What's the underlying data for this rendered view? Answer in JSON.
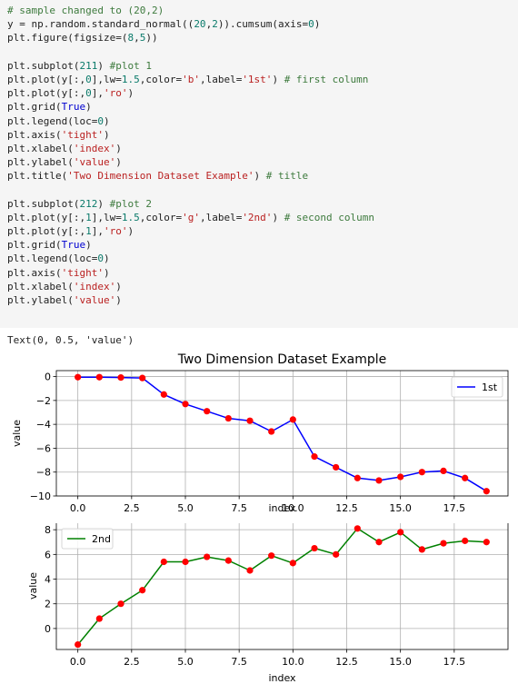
{
  "code_lines": [
    [
      {
        "t": "# sample changed to (20,2)",
        "c": "com"
      }
    ],
    [
      {
        "t": "y = np.random.standard_normal(("
      },
      {
        "t": "20",
        "c": "num"
      },
      {
        "t": ","
      },
      {
        "t": "2",
        "c": "num"
      },
      {
        "t": ")).cumsum(axis="
      },
      {
        "t": "0",
        "c": "num"
      },
      {
        "t": ")"
      }
    ],
    [
      {
        "t": "plt.figure(figsize=("
      },
      {
        "t": "8",
        "c": "num"
      },
      {
        "t": ","
      },
      {
        "t": "5",
        "c": "num"
      },
      {
        "t": "))"
      }
    ],
    [
      {
        "t": ""
      }
    ],
    [
      {
        "t": "plt.subplot("
      },
      {
        "t": "211",
        "c": "num"
      },
      {
        "t": ") "
      },
      {
        "t": "#plot 1",
        "c": "com"
      }
    ],
    [
      {
        "t": "plt.plot(y[:,"
      },
      {
        "t": "0",
        "c": "num"
      },
      {
        "t": "],lw="
      },
      {
        "t": "1.5",
        "c": "num"
      },
      {
        "t": ",color="
      },
      {
        "t": "'b'",
        "c": "str"
      },
      {
        "t": ",label="
      },
      {
        "t": "'1st'",
        "c": "str"
      },
      {
        "t": ") "
      },
      {
        "t": "# first column",
        "c": "com"
      }
    ],
    [
      {
        "t": "plt.plot(y[:,"
      },
      {
        "t": "0",
        "c": "num"
      },
      {
        "t": "],"
      },
      {
        "t": "'ro'",
        "c": "str"
      },
      {
        "t": ")"
      }
    ],
    [
      {
        "t": "plt.grid("
      },
      {
        "t": "True",
        "c": "kw"
      },
      {
        "t": ")"
      }
    ],
    [
      {
        "t": "plt.legend(loc="
      },
      {
        "t": "0",
        "c": "num"
      },
      {
        "t": ")"
      }
    ],
    [
      {
        "t": "plt.axis("
      },
      {
        "t": "'tight'",
        "c": "str"
      },
      {
        "t": ")"
      }
    ],
    [
      {
        "t": "plt.xlabel("
      },
      {
        "t": "'index'",
        "c": "str"
      },
      {
        "t": ")"
      }
    ],
    [
      {
        "t": "plt.ylabel("
      },
      {
        "t": "'value'",
        "c": "str"
      },
      {
        "t": ")"
      }
    ],
    [
      {
        "t": "plt.title("
      },
      {
        "t": "'Two Dimension Dataset Example'",
        "c": "str"
      },
      {
        "t": ") "
      },
      {
        "t": "# title",
        "c": "com"
      }
    ],
    [
      {
        "t": ""
      }
    ],
    [
      {
        "t": "plt.subplot("
      },
      {
        "t": "212",
        "c": "num"
      },
      {
        "t": ") "
      },
      {
        "t": "#plot 2",
        "c": "com"
      }
    ],
    [
      {
        "t": "plt.plot(y[:,"
      },
      {
        "t": "1",
        "c": "num"
      },
      {
        "t": "],lw="
      },
      {
        "t": "1.5",
        "c": "num"
      },
      {
        "t": ",color="
      },
      {
        "t": "'g'",
        "c": "str"
      },
      {
        "t": ",label="
      },
      {
        "t": "'2nd'",
        "c": "str"
      },
      {
        "t": ") "
      },
      {
        "t": "# second column",
        "c": "com"
      }
    ],
    [
      {
        "t": "plt.plot(y[:,"
      },
      {
        "t": "1",
        "c": "num"
      },
      {
        "t": "],"
      },
      {
        "t": "'ro'",
        "c": "str"
      },
      {
        "t": ")"
      }
    ],
    [
      {
        "t": "plt.grid("
      },
      {
        "t": "True",
        "c": "kw"
      },
      {
        "t": ")"
      }
    ],
    [
      {
        "t": "plt.legend(loc="
      },
      {
        "t": "0",
        "c": "num"
      },
      {
        "t": ")"
      }
    ],
    [
      {
        "t": "plt.axis("
      },
      {
        "t": "'tight'",
        "c": "str"
      },
      {
        "t": ")"
      }
    ],
    [
      {
        "t": "plt.xlabel("
      },
      {
        "t": "'index'",
        "c": "str"
      },
      {
        "t": ")"
      }
    ],
    [
      {
        "t": "plt.ylabel("
      },
      {
        "t": "'value'",
        "c": "str"
      },
      {
        "t": ")"
      }
    ]
  ],
  "output_text": "Text(0, 0.5, 'value')",
  "chart_data": [
    {
      "type": "line",
      "title": "Two Dimension Dataset Example",
      "xlabel": "index",
      "ylabel": "value",
      "xlim": [
        -1,
        20
      ],
      "ylim": [
        -10,
        0.5
      ],
      "xticks": [
        0.0,
        2.5,
        5.0,
        7.5,
        10.0,
        12.5,
        15.0,
        17.5
      ],
      "xtick_labels": [
        "0.0",
        "2.5",
        "5.0",
        "7.5",
        "10.0",
        "12.5",
        "15.0",
        "17.5"
      ],
      "yticks": [
        0,
        -2,
        -4,
        -6,
        -8,
        -10
      ],
      "ytick_labels": [
        "0",
        "−2",
        "−4",
        "−6",
        "−8",
        "−10"
      ],
      "grid": true,
      "legend": "top-right",
      "series": [
        {
          "name": "1st",
          "color": "#0000ff",
          "marker_color": "#ff0000",
          "x": [
            0,
            1,
            2,
            3,
            4,
            5,
            6,
            7,
            8,
            9,
            10,
            11,
            12,
            13,
            14,
            15,
            16,
            17,
            18,
            19
          ],
          "y": [
            -0.05,
            -0.05,
            -0.08,
            -0.12,
            -1.5,
            -2.3,
            -2.9,
            -3.5,
            -3.7,
            -4.6,
            -3.6,
            -6.7,
            -7.6,
            -8.5,
            -8.7,
            -8.4,
            -8.0,
            -7.9,
            -8.5,
            -9.6
          ]
        }
      ]
    },
    {
      "type": "line",
      "title": "",
      "xlabel": "index",
      "ylabel": "value",
      "xlim": [
        -1,
        20
      ],
      "ylim": [
        -1.7,
        8.6
      ],
      "xticks": [
        0.0,
        2.5,
        5.0,
        7.5,
        10.0,
        12.5,
        15.0,
        17.5
      ],
      "xtick_labels": [
        "0.0",
        "2.5",
        "5.0",
        "7.5",
        "10.0",
        "12.5",
        "15.0",
        "17.5"
      ],
      "yticks": [
        0,
        2,
        4,
        6,
        8
      ],
      "ytick_labels": [
        "0",
        "2",
        "4",
        "6",
        "8"
      ],
      "grid": true,
      "legend": "top-left",
      "series": [
        {
          "name": "2nd",
          "color": "#008000",
          "marker_color": "#ff0000",
          "x": [
            0,
            1,
            2,
            3,
            4,
            5,
            6,
            7,
            8,
            9,
            10,
            11,
            12,
            13,
            14,
            15,
            16,
            17,
            18,
            19
          ],
          "y": [
            -1.3,
            0.8,
            2.0,
            3.1,
            5.4,
            5.4,
            5.8,
            5.5,
            4.7,
            5.9,
            5.3,
            6.5,
            6.0,
            8.1,
            7.0,
            7.8,
            6.4,
            6.9,
            7.1,
            7.0
          ]
        }
      ]
    }
  ]
}
